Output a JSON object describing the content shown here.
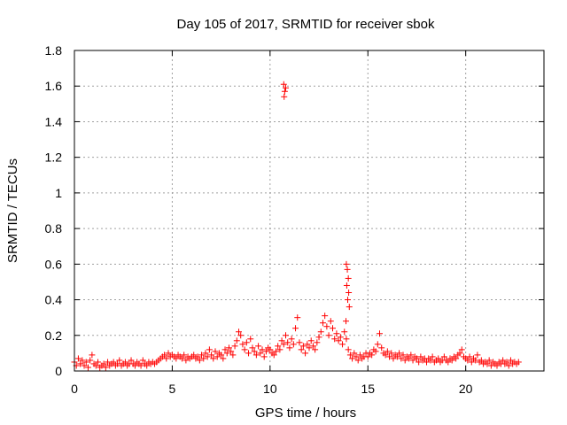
{
  "chart_data": {
    "type": "scatter",
    "title": "Day 105 of 2017, SRMTID for receiver sbok",
    "xlabel": "GPS time / hours",
    "ylabel": "SRMTID / TECUs",
    "xlim": [
      0,
      24
    ],
    "ylim": [
      0,
      1.8
    ],
    "xticks": [
      "0",
      "5",
      "10",
      "15",
      "20"
    ],
    "xtick_values": [
      0,
      5,
      10,
      15,
      20
    ],
    "yticks": [
      "0",
      "0.2",
      "0.4",
      "0.6",
      "0.8",
      "1",
      "1.2",
      "1.4",
      "1.6",
      "1.8"
    ],
    "ytick_values": [
      0,
      0.2,
      0.4,
      0.6,
      0.8,
      1.0,
      1.2,
      1.4,
      1.6,
      1.8
    ],
    "grid": true,
    "marker": "+",
    "color": "#ff0000",
    "series": [
      {
        "name": "SRMTID",
        "points": [
          [
            0.0,
            0.05
          ],
          [
            0.1,
            0.03
          ],
          [
            0.2,
            0.07
          ],
          [
            0.3,
            0.04
          ],
          [
            0.4,
            0.06
          ],
          [
            0.5,
            0.03
          ],
          [
            0.6,
            0.05
          ],
          [
            0.7,
            0.02
          ],
          [
            0.8,
            0.06
          ],
          [
            0.9,
            0.09
          ],
          [
            1.0,
            0.04
          ],
          [
            1.1,
            0.03
          ],
          [
            1.2,
            0.05
          ],
          [
            1.3,
            0.02
          ],
          [
            1.4,
            0.03
          ],
          [
            1.5,
            0.04
          ],
          [
            1.6,
            0.02
          ],
          [
            1.7,
            0.05
          ],
          [
            1.8,
            0.03
          ],
          [
            1.9,
            0.04
          ],
          [
            2.0,
            0.05
          ],
          [
            2.1,
            0.03
          ],
          [
            2.2,
            0.04
          ],
          [
            2.3,
            0.06
          ],
          [
            2.4,
            0.03
          ],
          [
            2.5,
            0.04
          ],
          [
            2.6,
            0.05
          ],
          [
            2.7,
            0.03
          ],
          [
            2.8,
            0.04
          ],
          [
            2.9,
            0.06
          ],
          [
            3.0,
            0.04
          ],
          [
            3.1,
            0.03
          ],
          [
            3.2,
            0.05
          ],
          [
            3.3,
            0.04
          ],
          [
            3.4,
            0.03
          ],
          [
            3.5,
            0.06
          ],
          [
            3.6,
            0.04
          ],
          [
            3.7,
            0.03
          ],
          [
            3.8,
            0.05
          ],
          [
            3.9,
            0.04
          ],
          [
            4.0,
            0.05
          ],
          [
            4.1,
            0.04
          ],
          [
            4.2,
            0.05
          ],
          [
            4.3,
            0.06
          ],
          [
            4.4,
            0.07
          ],
          [
            4.5,
            0.08
          ],
          [
            4.6,
            0.09
          ],
          [
            4.7,
            0.07
          ],
          [
            4.8,
            0.1
          ],
          [
            4.9,
            0.08
          ],
          [
            5.0,
            0.09
          ],
          [
            5.1,
            0.08
          ],
          [
            5.2,
            0.07
          ],
          [
            5.3,
            0.09
          ],
          [
            5.4,
            0.08
          ],
          [
            5.5,
            0.07
          ],
          [
            5.6,
            0.09
          ],
          [
            5.7,
            0.06
          ],
          [
            5.8,
            0.08
          ],
          [
            5.9,
            0.07
          ],
          [
            6.0,
            0.08
          ],
          [
            6.1,
            0.09
          ],
          [
            6.2,
            0.07
          ],
          [
            6.3,
            0.08
          ],
          [
            6.4,
            0.06
          ],
          [
            6.5,
            0.09
          ],
          [
            6.6,
            0.07
          ],
          [
            6.7,
            0.1
          ],
          [
            6.8,
            0.08
          ],
          [
            6.9,
            0.12
          ],
          [
            7.0,
            0.09
          ],
          [
            7.1,
            0.07
          ],
          [
            7.2,
            0.11
          ],
          [
            7.3,
            0.08
          ],
          [
            7.4,
            0.1
          ],
          [
            7.5,
            0.09
          ],
          [
            7.6,
            0.07
          ],
          [
            7.7,
            0.12
          ],
          [
            7.8,
            0.1
          ],
          [
            7.9,
            0.13
          ],
          [
            8.0,
            0.11
          ],
          [
            8.1,
            0.09
          ],
          [
            8.2,
            0.14
          ],
          [
            8.3,
            0.17
          ],
          [
            8.4,
            0.22
          ],
          [
            8.5,
            0.2
          ],
          [
            8.6,
            0.15
          ],
          [
            8.7,
            0.12
          ],
          [
            8.8,
            0.16
          ],
          [
            8.9,
            0.1
          ],
          [
            9.0,
            0.18
          ],
          [
            9.1,
            0.13
          ],
          [
            9.2,
            0.11
          ],
          [
            9.3,
            0.09
          ],
          [
            9.4,
            0.14
          ],
          [
            9.5,
            0.1
          ],
          [
            9.6,
            0.12
          ],
          [
            9.7,
            0.08
          ],
          [
            9.8,
            0.11
          ],
          [
            9.9,
            0.13
          ],
          [
            10.0,
            0.12
          ],
          [
            10.1,
            0.1
          ],
          [
            10.2,
            0.09
          ],
          [
            10.3,
            0.11
          ],
          [
            10.4,
            0.14
          ],
          [
            10.5,
            0.12
          ],
          [
            10.6,
            0.17
          ],
          [
            10.7,
            0.15
          ],
          [
            10.8,
            0.2
          ],
          [
            10.9,
            0.16
          ],
          [
            11.0,
            0.13
          ],
          [
            11.1,
            0.18
          ],
          [
            11.2,
            0.15
          ],
          [
            11.3,
            0.24
          ],
          [
            11.4,
            0.3
          ],
          [
            11.5,
            0.16
          ],
          [
            11.6,
            0.12
          ],
          [
            11.7,
            0.14
          ],
          [
            11.8,
            0.1
          ],
          [
            11.9,
            0.15
          ],
          [
            12.0,
            0.13
          ],
          [
            12.1,
            0.17
          ],
          [
            12.2,
            0.14
          ],
          [
            12.3,
            0.12
          ],
          [
            12.4,
            0.16
          ],
          [
            12.5,
            0.19
          ],
          [
            12.6,
            0.22
          ],
          [
            12.7,
            0.27
          ],
          [
            12.8,
            0.31
          ],
          [
            12.9,
            0.25
          ],
          [
            13.0,
            0.2
          ],
          [
            13.1,
            0.28
          ],
          [
            13.2,
            0.24
          ],
          [
            13.3,
            0.18
          ],
          [
            13.4,
            0.21
          ],
          [
            13.5,
            0.17
          ],
          [
            13.6,
            0.19
          ],
          [
            13.7,
            0.15
          ],
          [
            13.8,
            0.22
          ],
          [
            13.9,
            0.18
          ],
          [
            14.0,
            0.12
          ],
          [
            14.1,
            0.09
          ],
          [
            14.2,
            0.07
          ],
          [
            14.3,
            0.1
          ],
          [
            14.4,
            0.08
          ],
          [
            14.5,
            0.06
          ],
          [
            14.6,
            0.09
          ],
          [
            14.7,
            0.07
          ],
          [
            14.8,
            0.08
          ],
          [
            14.9,
            0.1
          ],
          [
            10.7,
            1.61
          ],
          [
            10.75,
            1.57
          ],
          [
            10.8,
            1.59
          ],
          [
            10.72,
            1.54
          ],
          [
            13.9,
            0.6
          ],
          [
            13.95,
            0.57
          ],
          [
            14.0,
            0.52
          ],
          [
            13.92,
            0.48
          ],
          [
            14.02,
            0.44
          ],
          [
            13.97,
            0.4
          ],
          [
            14.05,
            0.36
          ],
          [
            13.88,
            0.28
          ],
          [
            15.0,
            0.08
          ],
          [
            15.1,
            0.1
          ],
          [
            15.2,
            0.09
          ],
          [
            15.3,
            0.12
          ],
          [
            15.4,
            0.11
          ],
          [
            15.5,
            0.15
          ],
          [
            15.6,
            0.21
          ],
          [
            15.7,
            0.13
          ],
          [
            15.8,
            0.1
          ],
          [
            15.9,
            0.09
          ],
          [
            16.0,
            0.11
          ],
          [
            16.1,
            0.08
          ],
          [
            16.2,
            0.1
          ],
          [
            16.3,
            0.07
          ],
          [
            16.4,
            0.09
          ],
          [
            16.5,
            0.08
          ],
          [
            16.6,
            0.1
          ],
          [
            16.7,
            0.07
          ],
          [
            16.8,
            0.09
          ],
          [
            16.9,
            0.06
          ],
          [
            17.0,
            0.08
          ],
          [
            17.1,
            0.07
          ],
          [
            17.2,
            0.09
          ],
          [
            17.3,
            0.06
          ],
          [
            17.4,
            0.08
          ],
          [
            17.5,
            0.07
          ],
          [
            17.6,
            0.05
          ],
          [
            17.7,
            0.08
          ],
          [
            17.8,
            0.06
          ],
          [
            17.9,
            0.07
          ],
          [
            18.0,
            0.05
          ],
          [
            18.1,
            0.07
          ],
          [
            18.2,
            0.06
          ],
          [
            18.3,
            0.08
          ],
          [
            18.4,
            0.05
          ],
          [
            18.5,
            0.06
          ],
          [
            18.6,
            0.07
          ],
          [
            18.7,
            0.05
          ],
          [
            18.8,
            0.06
          ],
          [
            18.9,
            0.08
          ],
          [
            19.0,
            0.06
          ],
          [
            19.1,
            0.05
          ],
          [
            19.2,
            0.07
          ],
          [
            19.3,
            0.06
          ],
          [
            19.4,
            0.08
          ],
          [
            19.5,
            0.07
          ],
          [
            19.6,
            0.09
          ],
          [
            19.7,
            0.1
          ],
          [
            19.8,
            0.12
          ],
          [
            19.9,
            0.08
          ],
          [
            20.0,
            0.07
          ],
          [
            20.1,
            0.06
          ],
          [
            20.2,
            0.08
          ],
          [
            20.3,
            0.05
          ],
          [
            20.4,
            0.07
          ],
          [
            20.5,
            0.06
          ],
          [
            20.6,
            0.09
          ],
          [
            20.7,
            0.05
          ],
          [
            20.8,
            0.06
          ],
          [
            20.9,
            0.04
          ],
          [
            21.0,
            0.05
          ],
          [
            21.1,
            0.04
          ],
          [
            21.2,
            0.06
          ],
          [
            21.3,
            0.03
          ],
          [
            21.4,
            0.05
          ],
          [
            21.5,
            0.04
          ],
          [
            21.6,
            0.03
          ],
          [
            21.7,
            0.05
          ],
          [
            21.8,
            0.04
          ],
          [
            21.9,
            0.06
          ],
          [
            22.0,
            0.04
          ],
          [
            22.1,
            0.05
          ],
          [
            22.2,
            0.03
          ],
          [
            22.3,
            0.06
          ],
          [
            22.4,
            0.04
          ],
          [
            22.5,
            0.05
          ],
          [
            22.6,
            0.04
          ],
          [
            22.7,
            0.05
          ]
        ]
      }
    ]
  }
}
